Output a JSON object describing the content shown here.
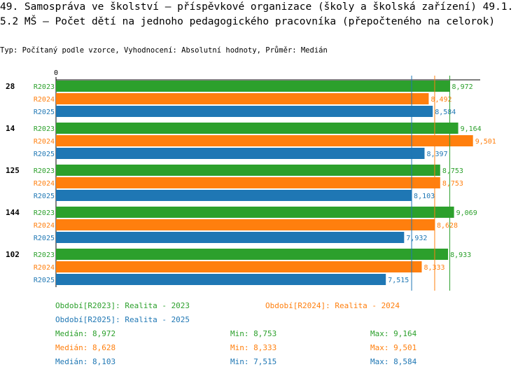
{
  "header": {
    "title": "49. Samospráva ve školství – příspěvkové organizace (školy a školská zařízení) 49.1.5.2 MŠ – Počet dětí na jednoho pedagogického pracovníka (přepočteného na celorok)",
    "subtitle": "Typ: Počítaný podle vzorce, Vyhodnocení: Absolutní hodnoty, Průměr: Medián"
  },
  "colors": {
    "R2023": "#2ca02c",
    "R2024": "#ff7f0e",
    "R2025": "#1f77b4"
  },
  "chart_data": {
    "type": "bar",
    "orientation": "horizontal",
    "title": "49.1.5.2 MŠ – Počet dětí na jednoho pedagogického pracovníka (přepočteného na celorok)",
    "axis_zero_label": "0",
    "categories": [
      "28",
      "14",
      "125",
      "144",
      "102"
    ],
    "series": [
      {
        "name": "R2023",
        "values": [
          8.972,
          9.164,
          8.753,
          9.069,
          8.933
        ],
        "labels": [
          "8,972",
          "9,164",
          "8,753",
          "9,069",
          "8,933"
        ]
      },
      {
        "name": "R2024",
        "values": [
          8.492,
          9.501,
          8.753,
          8.628,
          8.333
        ],
        "labels": [
          "8,492",
          "9,501",
          "8,753",
          "8,628",
          "8,333"
        ]
      },
      {
        "name": "R2025",
        "values": [
          8.584,
          8.397,
          8.103,
          7.932,
          7.515
        ],
        "labels": [
          "8,584",
          "8,397",
          "8,103",
          "7,932",
          "7,515"
        ]
      }
    ],
    "medians": {
      "R2023": 8.972,
      "R2024": 8.628,
      "R2025": 8.103
    }
  },
  "legend": {
    "r2023": "Období[R2023]: Realita - 2023",
    "r2024": "Období[R2024]: Realita - 2024",
    "r2025": "Období[R2025]: Realita - 2025"
  },
  "stats": [
    {
      "median": "Medián: 8,972",
      "min": "Min: 8,753",
      "max": "Max: 9,164"
    },
    {
      "median": "Medián: 8,628",
      "min": "Min: 8,333",
      "max": "Max: 9,501"
    },
    {
      "median": "Medián: 8,103",
      "min": "Min: 7,515",
      "max": "Max: 8,584"
    }
  ]
}
